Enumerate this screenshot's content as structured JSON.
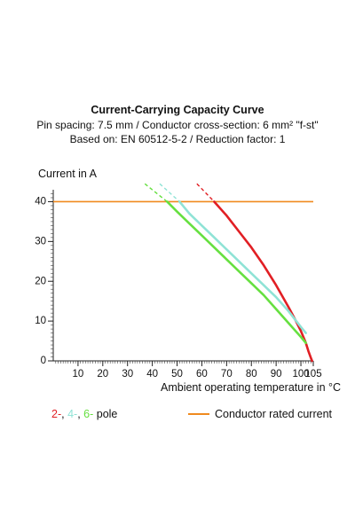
{
  "chart_data": {
    "type": "line",
    "title": "Current-Carrying Capacity Curve",
    "subtitle_lines": [
      "Pin spacing: 7.5 mm / Conductor cross-section: 6 mm² \"f-st\"",
      "Based on: EN 60512-5-2 / Reduction factor: 1"
    ],
    "ylabel": "Current in A",
    "xlabel": "Ambient operating temperature in °C",
    "xlim": [
      0,
      105
    ],
    "ylim": [
      0,
      43
    ],
    "x_ticks": [
      10,
      20,
      30,
      40,
      50,
      60,
      70,
      80,
      90,
      100,
      105
    ],
    "y_ticks": [
      0,
      10,
      20,
      30,
      40
    ],
    "grid": false,
    "rated_current": 40,
    "series": [
      {
        "name": "2-pole",
        "color": "#e11f24",
        "dashed": [
          [
            58,
            44.5
          ],
          [
            65,
            40
          ]
        ],
        "x": [
          65,
          70,
          75,
          80,
          85,
          90,
          95,
          98,
          100,
          102,
          103,
          104,
          104.5
        ],
        "y": [
          40,
          36.5,
          32.5,
          28.5,
          24,
          19,
          13.5,
          10,
          7.5,
          4.5,
          2.5,
          0.8,
          0
        ]
      },
      {
        "name": "4-pole",
        "color": "#8fe3d6",
        "dashed": [
          [
            43,
            44.5
          ],
          [
            51,
            40
          ]
        ],
        "x": [
          51,
          55,
          60,
          65,
          70,
          75,
          80,
          85,
          90,
          95,
          100,
          102
        ],
        "y": [
          40,
          37,
          34,
          31,
          28,
          25,
          22,
          19,
          16,
          12.5,
          8.5,
          7
        ]
      },
      {
        "name": "6-pole",
        "color": "#66e040",
        "dashed": [
          [
            37,
            44.5
          ],
          [
            46,
            40
          ]
        ],
        "x": [
          46,
          50,
          55,
          60,
          65,
          70,
          75,
          80,
          85,
          90,
          95,
          100,
          102
        ],
        "y": [
          40,
          37.5,
          34.5,
          31.5,
          28.5,
          25.5,
          22.5,
          19.5,
          16.5,
          13,
          9.5,
          6,
          4.5
        ]
      }
    ]
  },
  "legend": {
    "poles": {
      "red": "2-",
      "sep1": ", ",
      "cyan": "4-",
      "sep2": ", ",
      "green": "6-",
      "suffix": " pole"
    },
    "rated": {
      "label": "Conductor rated current",
      "color": "#f08a1e"
    }
  }
}
